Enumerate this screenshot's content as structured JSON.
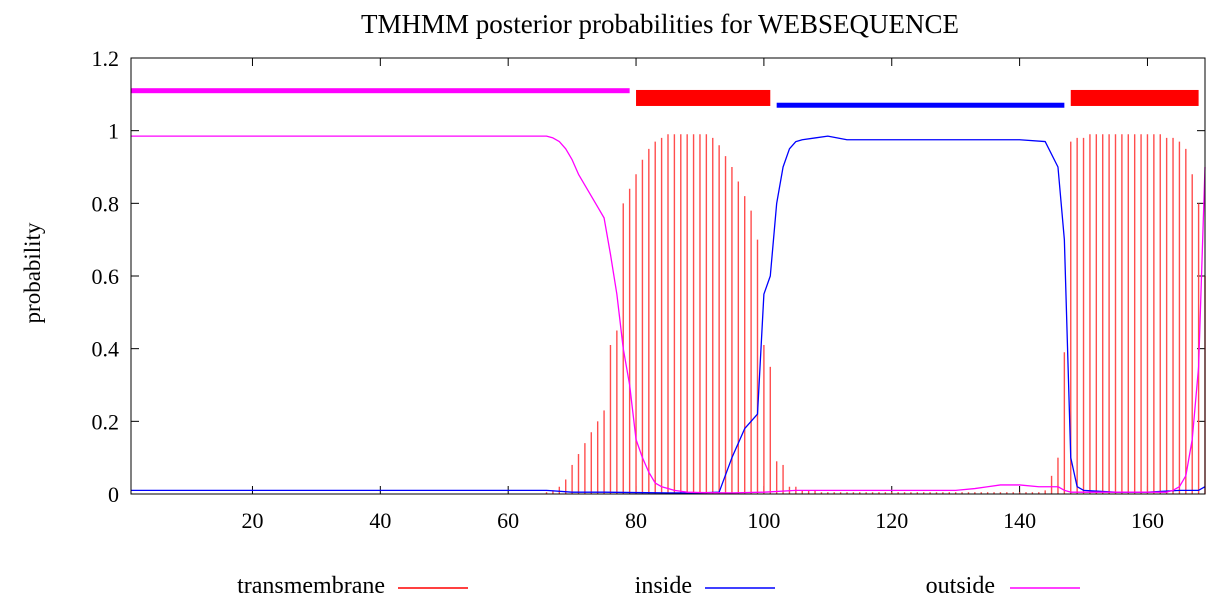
{
  "chart_data": {
    "type": "line",
    "title": "TMHMM posterior probabilities for WEBSEQUENCE",
    "xlabel": "",
    "ylabel": "probability",
    "xlim": [
      1,
      169
    ],
    "ylim": [
      0,
      1.2
    ],
    "x_ticks": [
      20,
      40,
      60,
      80,
      100,
      120,
      140,
      160
    ],
    "y_ticks": [
      0,
      0.2,
      0.4,
      0.6,
      0.8,
      1,
      1.2
    ],
    "y_tick_labels": [
      "0",
      "0.2",
      "0.4",
      "0.6",
      "0.8",
      "1",
      "1.2"
    ],
    "legend_placement": "bottom",
    "colors": {
      "transmembrane": "#ff0000",
      "inside": "#0000ff",
      "outside": "#ff00ff"
    },
    "topology_bars": [
      {
        "type": "outside",
        "start": 1,
        "end": 79,
        "y": 1.11
      },
      {
        "type": "transmembrane",
        "start": 80,
        "end": 101,
        "y": 1.09
      },
      {
        "type": "inside",
        "start": 102,
        "end": 147,
        "y": 1.07
      },
      {
        "type": "transmembrane",
        "start": 148,
        "end": 168,
        "y": 1.09
      }
    ],
    "series": [
      {
        "name": "transmembrane",
        "style": "impulses",
        "x": [
          66,
          67,
          68,
          69,
          70,
          71,
          72,
          73,
          74,
          75,
          76,
          77,
          78,
          79,
          80,
          81,
          82,
          83,
          84,
          85,
          86,
          87,
          88,
          89,
          90,
          91,
          92,
          93,
          94,
          95,
          96,
          97,
          98,
          99,
          100,
          101,
          102,
          103,
          104,
          105,
          106,
          107,
          108,
          109,
          110,
          111,
          112,
          113,
          114,
          115,
          116,
          117,
          118,
          119,
          120,
          121,
          122,
          123,
          124,
          125,
          126,
          127,
          128,
          129,
          130,
          131,
          132,
          133,
          134,
          135,
          136,
          137,
          138,
          139,
          140,
          141,
          142,
          143,
          144,
          145,
          146,
          147,
          148,
          149,
          150,
          151,
          152,
          153,
          154,
          155,
          156,
          157,
          158,
          159,
          160,
          161,
          162,
          163,
          164,
          165,
          166,
          167,
          168,
          169
        ],
        "values": [
          0.005,
          0.01,
          0.02,
          0.04,
          0.08,
          0.11,
          0.14,
          0.17,
          0.2,
          0.23,
          0.41,
          0.45,
          0.8,
          0.84,
          0.88,
          0.92,
          0.95,
          0.97,
          0.98,
          0.99,
          0.99,
          0.99,
          0.99,
          0.99,
          0.99,
          0.99,
          0.98,
          0.96,
          0.93,
          0.9,
          0.86,
          0.82,
          0.78,
          0.7,
          0.41,
          0.35,
          0.09,
          0.08,
          0.02,
          0.02,
          0.01,
          0.01,
          0.01,
          0.005,
          0.005,
          0.005,
          0.005,
          0.005,
          0.005,
          0.005,
          0.005,
          0.005,
          0.005,
          0.005,
          0.005,
          0.005,
          0.005,
          0.005,
          0.005,
          0.005,
          0.005,
          0.005,
          0.005,
          0.005,
          0.005,
          0.005,
          0.005,
          0.005,
          0.005,
          0.005,
          0.005,
          0.005,
          0.005,
          0.005,
          0.005,
          0.005,
          0.005,
          0.005,
          0.01,
          0.05,
          0.1,
          0.39,
          0.97,
          0.98,
          0.98,
          0.99,
          0.99,
          0.99,
          0.99,
          0.99,
          0.99,
          0.99,
          0.99,
          0.99,
          0.99,
          0.99,
          0.99,
          0.98,
          0.98,
          0.97,
          0.95,
          0.88,
          0.8,
          0.6
        ]
      },
      {
        "name": "inside",
        "style": "line",
        "x": [
          1,
          10,
          20,
          30,
          40,
          50,
          60,
          66,
          70,
          75,
          80,
          85,
          90,
          93,
          95,
          97,
          99,
          100,
          101,
          102,
          103,
          104,
          105,
          106,
          108,
          110,
          113,
          120,
          130,
          140,
          144,
          146,
          147,
          148,
          149,
          150,
          155,
          160,
          165,
          168,
          169
        ],
        "values": [
          0.01,
          0.01,
          0.01,
          0.01,
          0.01,
          0.01,
          0.01,
          0.01,
          0.005,
          0.005,
          0.004,
          0.003,
          0.003,
          0.005,
          0.1,
          0.18,
          0.22,
          0.55,
          0.6,
          0.8,
          0.9,
          0.95,
          0.97,
          0.975,
          0.98,
          0.985,
          0.975,
          0.975,
          0.975,
          0.975,
          0.97,
          0.9,
          0.7,
          0.1,
          0.02,
          0.01,
          0.005,
          0.005,
          0.01,
          0.01,
          0.02
        ]
      },
      {
        "name": "outside",
        "style": "line",
        "x": [
          1,
          10,
          20,
          30,
          40,
          50,
          60,
          64,
          66,
          67,
          68,
          69,
          70,
          71,
          72,
          73,
          74,
          75,
          76,
          77,
          78,
          79,
          80,
          81,
          82,
          83,
          84,
          85,
          86,
          88,
          90,
          95,
          100,
          105,
          110,
          115,
          120,
          125,
          130,
          133,
          135,
          137,
          140,
          143,
          146,
          147,
          148,
          150,
          155,
          160,
          163,
          164,
          165,
          166,
          167,
          168,
          169
        ],
        "values": [
          0.985,
          0.985,
          0.985,
          0.985,
          0.985,
          0.985,
          0.985,
          0.985,
          0.985,
          0.98,
          0.97,
          0.95,
          0.92,
          0.88,
          0.85,
          0.82,
          0.79,
          0.76,
          0.66,
          0.55,
          0.4,
          0.3,
          0.15,
          0.1,
          0.06,
          0.03,
          0.02,
          0.015,
          0.01,
          0.005,
          0.004,
          0.003,
          0.005,
          0.01,
          0.01,
          0.01,
          0.01,
          0.01,
          0.01,
          0.015,
          0.02,
          0.025,
          0.025,
          0.02,
          0.02,
          0.01,
          0.005,
          0.005,
          0.005,
          0.005,
          0.005,
          0.01,
          0.02,
          0.05,
          0.15,
          0.35,
          0.9
        ]
      }
    ]
  }
}
